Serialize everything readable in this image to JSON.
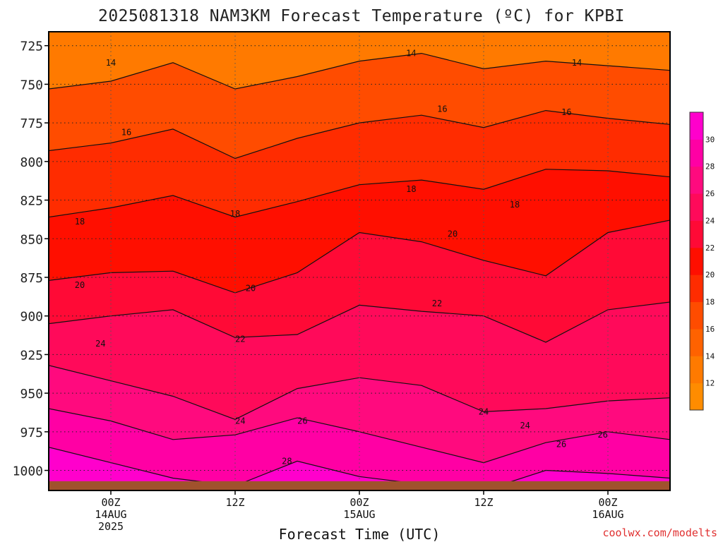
{
  "chart_data": {
    "type": "heatmap",
    "title": "2025081318 NAM3KM Forecast Temperature (ºC) for KPBI",
    "xlabel": "Forecast Time (UTC)",
    "ylabel": "",
    "credit": "coolwx.com/modelts",
    "y_axis": {
      "ticks": [
        725,
        750,
        775,
        800,
        825,
        850,
        875,
        900,
        925,
        950,
        975,
        1000
      ],
      "range": [
        716,
        1013
      ],
      "scale": "pressure-inverted"
    },
    "x_axis": {
      "ticks": [
        {
          "hour": 6,
          "l1": "00Z",
          "l2": "14AUG",
          "l3": "2025"
        },
        {
          "hour": 18,
          "l1": "12Z",
          "l2": "",
          "l3": ""
        },
        {
          "hour": 30,
          "l1": "00Z",
          "l2": "15AUG",
          "l3": ""
        },
        {
          "hour": 42,
          "l1": "12Z",
          "l2": "",
          "l3": ""
        },
        {
          "hour": 54,
          "l1": "00Z",
          "l2": "16AUG",
          "l3": ""
        }
      ],
      "range": [
        0,
        60
      ],
      "unit": "forecast hours from 2025081318"
    },
    "grid": true,
    "colorbar": {
      "levels": [
        10,
        12,
        14,
        16,
        18,
        20,
        22,
        24,
        26,
        28,
        30,
        32
      ],
      "labels": [
        12,
        14,
        16,
        18,
        20,
        22,
        24,
        26,
        28,
        30
      ],
      "colors": [
        "#ff8c00",
        "#ff7a00",
        "#ff6200",
        "#ff4c00",
        "#ff2c00",
        "#ff0f00",
        "#ff0a36",
        "#ff0a5a",
        "#ff0a7e",
        "#ff00a4",
        "#ff00cc"
      ],
      "placement": "right"
    },
    "contour_levels": [
      14,
      16,
      18,
      20,
      22,
      24,
      26,
      28
    ],
    "series": [
      {
        "level": 14,
        "x": [
          0,
          6,
          12,
          18,
          24,
          30,
          36,
          42,
          48,
          54,
          60
        ],
        "y": [
          753,
          748,
          736,
          753,
          745,
          735,
          730,
          740,
          735,
          738,
          741
        ]
      },
      {
        "level": 16,
        "x": [
          0,
          6,
          12,
          18,
          24,
          30,
          36,
          42,
          48,
          54,
          60
        ],
        "y": [
          793,
          788,
          779,
          798,
          785,
          775,
          770,
          778,
          767,
          772,
          776
        ]
      },
      {
        "level": 18,
        "x": [
          0,
          6,
          12,
          18,
          24,
          30,
          36,
          42,
          48,
          54,
          60
        ],
        "y": [
          836,
          830,
          822,
          836,
          826,
          815,
          812,
          818,
          805,
          806,
          810
        ]
      },
      {
        "level": 20,
        "x": [
          0,
          6,
          12,
          18,
          24,
          30,
          36,
          42,
          48,
          54,
          60
        ],
        "y": [
          877,
          872,
          871,
          885,
          872,
          846,
          852,
          864,
          874,
          846,
          838
        ]
      },
      {
        "level": 22,
        "x": [
          0,
          6,
          12,
          18,
          24,
          30,
          36,
          42,
          48,
          54,
          60
        ],
        "y": [
          905,
          900,
          896,
          914,
          912,
          893,
          897,
          900,
          917,
          896,
          891
        ]
      },
      {
        "level": 24,
        "x": [
          0,
          6,
          12,
          18,
          24,
          30,
          36,
          42,
          48,
          54,
          60
        ],
        "y": [
          932,
          942,
          952,
          967,
          947,
          940,
          945,
          962,
          960,
          955,
          953
        ]
      },
      {
        "level": 26,
        "x": [
          0,
          6,
          12,
          18,
          24,
          30,
          36,
          42,
          48,
          54,
          60
        ],
        "y": [
          960,
          968,
          980,
          977,
          966,
          975,
          985,
          995,
          982,
          975,
          980
        ]
      },
      {
        "level": 28,
        "x": [
          0,
          6,
          12,
          18,
          24,
          30,
          36,
          42,
          48,
          54,
          60
        ],
        "y": [
          985,
          995,
          1005,
          1010,
          994,
          1004,
          1009,
          1013,
          1000,
          1002,
          1005
        ]
      }
    ],
    "contour_labels": [
      {
        "text": "14",
        "hour": 6.0,
        "p": 736
      },
      {
        "text": "14",
        "hour": 35.0,
        "p": 730
      },
      {
        "text": "14",
        "hour": 51.0,
        "p": 736
      },
      {
        "text": "16",
        "hour": 7.5,
        "p": 781
      },
      {
        "text": "16",
        "hour": 38.0,
        "p": 766
      },
      {
        "text": "16",
        "hour": 50.0,
        "p": 768
      },
      {
        "text": "18",
        "hour": 3.0,
        "p": 839
      },
      {
        "text": "18",
        "hour": 18.0,
        "p": 834
      },
      {
        "text": "18",
        "hour": 35.0,
        "p": 818
      },
      {
        "text": "18",
        "hour": 45.0,
        "p": 828
      },
      {
        "text": "20",
        "hour": 3.0,
        "p": 880
      },
      {
        "text": "20",
        "hour": 19.5,
        "p": 882
      },
      {
        "text": "20",
        "hour": 39.0,
        "p": 847
      },
      {
        "text": "22",
        "hour": 18.5,
        "p": 915
      },
      {
        "text": "22",
        "hour": 37.5,
        "p": 892
      },
      {
        "text": "24",
        "hour": 5.0,
        "p": 918
      },
      {
        "text": "24",
        "hour": 18.5,
        "p": 968
      },
      {
        "text": "24",
        "hour": 42.0,
        "p": 962
      },
      {
        "text": "24",
        "hour": 46.0,
        "p": 971
      },
      {
        "text": "26",
        "hour": 24.5,
        "p": 968
      },
      {
        "text": "26",
        "hour": 49.5,
        "p": 983
      },
      {
        "text": "26",
        "hour": 53.5,
        "p": 977
      },
      {
        "text": "28",
        "hour": 23.0,
        "p": 994
      }
    ],
    "surface": {
      "color": "#a0522d",
      "p_top": 1007
    }
  }
}
